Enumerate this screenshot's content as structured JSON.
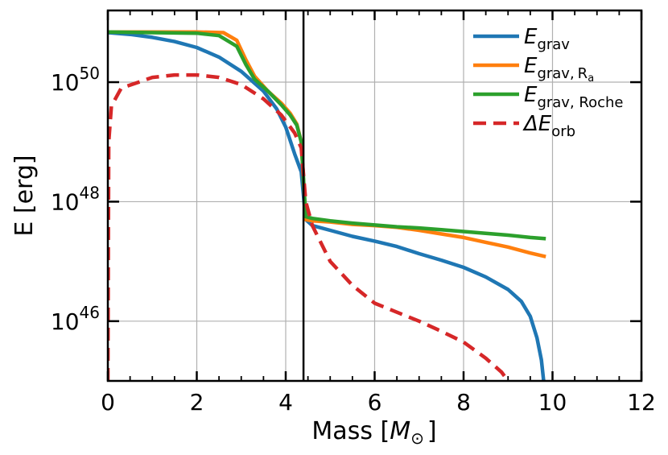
{
  "chart_data": {
    "type": "line",
    "xlabel": "Mass [M⊙]",
    "xlabel_main": "Mass [",
    "xlabel_symbol": "M",
    "xlabel_sub": "⊙",
    "xlabel_close": "]",
    "ylabel": "E [erg]",
    "xlim": [
      0,
      12
    ],
    "ylim_log10": [
      45.0,
      51.2
    ],
    "yscale": "log",
    "grid": true,
    "legend_position": "top-right",
    "x_ticks": [
      "0",
      "2",
      "4",
      "6",
      "8",
      "10",
      "12"
    ],
    "y_ticks": [
      {
        "base": "10",
        "exp": "46",
        "value_log10": 46
      },
      {
        "base": "10",
        "exp": "48",
        "value_log10": 48
      },
      {
        "base": "10",
        "exp": "50",
        "value_log10": 50
      }
    ],
    "vertical_line_x": 4.4,
    "series": [
      {
        "name": "E_grav",
        "legend": {
          "main": "E",
          "sub": "grav",
          "sub2": ""
        },
        "color": "#1f77b4",
        "style": "solid",
        "points": [
          [
            0,
            50.83
          ],
          [
            0.5,
            50.8
          ],
          [
            1,
            50.75
          ],
          [
            1.5,
            50.68
          ],
          [
            2,
            50.58
          ],
          [
            2.5,
            50.42
          ],
          [
            3,
            50.18
          ],
          [
            3.5,
            49.85
          ],
          [
            3.8,
            49.55
          ],
          [
            4.0,
            49.25
          ],
          [
            4.2,
            48.8
          ],
          [
            4.35,
            48.5
          ],
          [
            4.45,
            47.7
          ],
          [
            4.6,
            47.6
          ],
          [
            5,
            47.52
          ],
          [
            5.5,
            47.42
          ],
          [
            6,
            47.34
          ],
          [
            6.5,
            47.25
          ],
          [
            7,
            47.13
          ],
          [
            7.5,
            47.02
          ],
          [
            8,
            46.9
          ],
          [
            8.5,
            46.74
          ],
          [
            9,
            46.53
          ],
          [
            9.3,
            46.33
          ],
          [
            9.5,
            46.08
          ],
          [
            9.65,
            45.72
          ],
          [
            9.75,
            45.35
          ],
          [
            9.8,
            45.0
          ]
        ]
      },
      {
        "name": "E_grav,Ra",
        "legend": {
          "main": "E",
          "sub": "grav,",
          "sub2": "a",
          "sub_letter": "R"
        },
        "color": "#ff7f0e",
        "style": "solid",
        "points": [
          [
            0,
            50.84
          ],
          [
            1,
            50.84
          ],
          [
            2,
            50.84
          ],
          [
            2.6,
            50.83
          ],
          [
            2.9,
            50.7
          ],
          [
            3.1,
            50.38
          ],
          [
            3.3,
            50.1
          ],
          [
            3.6,
            49.85
          ],
          [
            3.9,
            49.65
          ],
          [
            4.1,
            49.48
          ],
          [
            4.25,
            49.3
          ],
          [
            4.35,
            49.0
          ],
          [
            4.45,
            47.7
          ],
          [
            4.6,
            47.68
          ],
          [
            5,
            47.66
          ],
          [
            5.5,
            47.62
          ],
          [
            6,
            47.6
          ],
          [
            6.5,
            47.57
          ],
          [
            7,
            47.52
          ],
          [
            7.5,
            47.46
          ],
          [
            8,
            47.4
          ],
          [
            8.5,
            47.32
          ],
          [
            9,
            47.24
          ],
          [
            9.5,
            47.14
          ],
          [
            9.85,
            47.08
          ]
        ]
      },
      {
        "name": "E_grav,Roche",
        "legend": {
          "main": "E",
          "sub": "grav, Roche",
          "sub2": ""
        },
        "color": "#2ca02c",
        "style": "solid",
        "points": [
          [
            0,
            50.84
          ],
          [
            1,
            50.83
          ],
          [
            2,
            50.82
          ],
          [
            2.5,
            50.78
          ],
          [
            2.9,
            50.6
          ],
          [
            3.1,
            50.3
          ],
          [
            3.3,
            50.05
          ],
          [
            3.6,
            49.85
          ],
          [
            3.9,
            49.62
          ],
          [
            4.1,
            49.45
          ],
          [
            4.25,
            49.28
          ],
          [
            4.35,
            49.0
          ],
          [
            4.45,
            47.75
          ],
          [
            4.6,
            47.72
          ],
          [
            5,
            47.68
          ],
          [
            5.5,
            47.64
          ],
          [
            6,
            47.61
          ],
          [
            6.5,
            47.58
          ],
          [
            7,
            47.56
          ],
          [
            7.5,
            47.53
          ],
          [
            8,
            47.5
          ],
          [
            8.5,
            47.47
          ],
          [
            9,
            47.44
          ],
          [
            9.5,
            47.4
          ],
          [
            9.85,
            47.38
          ]
        ]
      },
      {
        "name": "ΔE_orb",
        "legend": {
          "main": "ΔE",
          "sub": "orb",
          "sub2": ""
        },
        "color": "#d62728",
        "style": "dashed",
        "points": [
          [
            0,
            45.0
          ],
          [
            0.02,
            49.0
          ],
          [
            0.08,
            49.6
          ],
          [
            0.3,
            49.9
          ],
          [
            1,
            50.08
          ],
          [
            1.5,
            50.12
          ],
          [
            2,
            50.12
          ],
          [
            2.5,
            50.08
          ],
          [
            3,
            49.96
          ],
          [
            3.5,
            49.72
          ],
          [
            3.9,
            49.45
          ],
          [
            4.2,
            49.15
          ],
          [
            4.35,
            48.9
          ],
          [
            4.45,
            48.0
          ],
          [
            4.6,
            47.6
          ],
          [
            5,
            47.0
          ],
          [
            5.5,
            46.6
          ],
          [
            6,
            46.3
          ],
          [
            6.5,
            46.15
          ],
          [
            7,
            46.0
          ],
          [
            7.5,
            45.83
          ],
          [
            8,
            45.65
          ],
          [
            8.5,
            45.38
          ],
          [
            8.85,
            45.15
          ],
          [
            9.0,
            45.0
          ]
        ]
      }
    ]
  }
}
